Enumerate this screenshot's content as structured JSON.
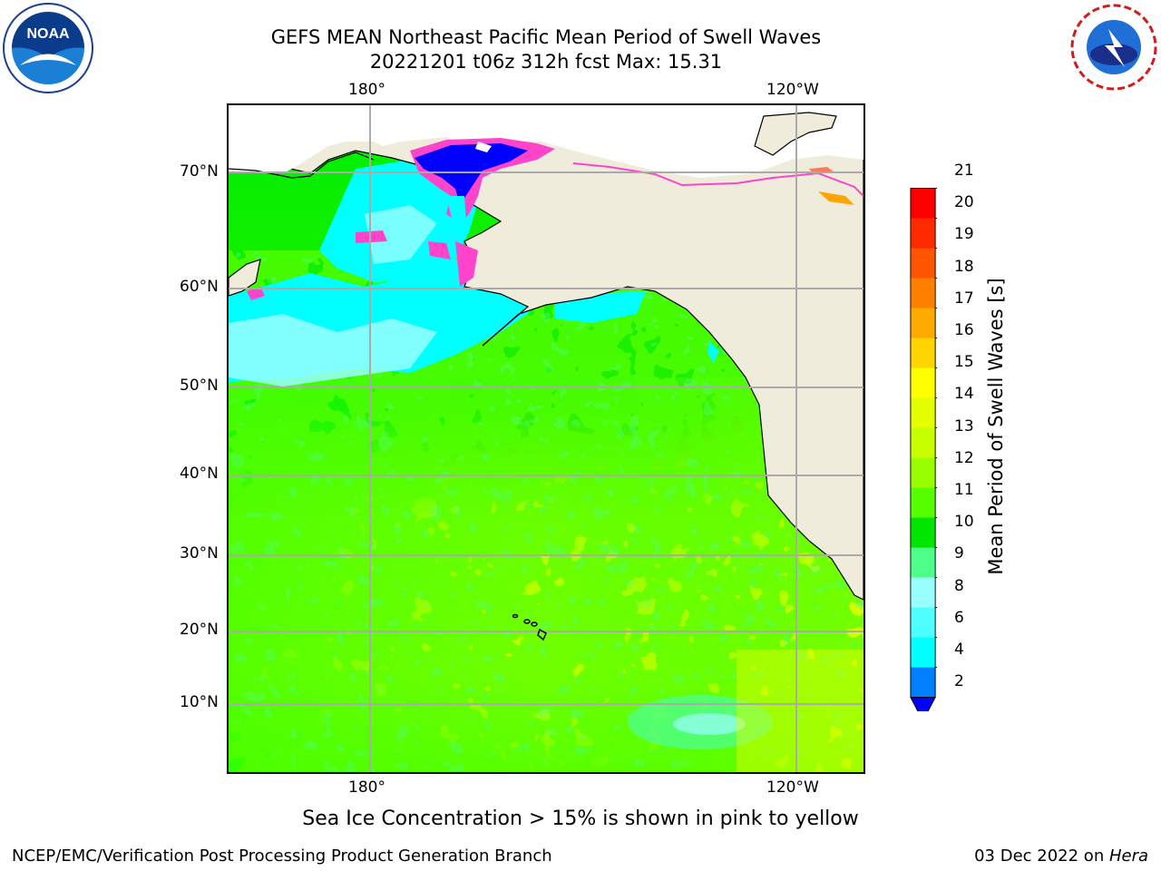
{
  "header": {
    "title_line1": "GEFS MEAN Northeast Pacific Mean Period of Swell Waves",
    "title_line2": "20221201 t06z 312h fcst   Max: 15.31"
  },
  "logos": {
    "left": "NOAA",
    "right": "NATIONAL WEATHER SERVICE"
  },
  "map": {
    "lon_labels_top": [
      "180°",
      "120°W"
    ],
    "lon_labels_bottom": [
      "180°",
      "120°W"
    ],
    "lat_labels": [
      "70°N",
      "60°N",
      "50°N",
      "40°N",
      "30°N",
      "20°N",
      "10°N"
    ],
    "land_color": "#efecdc",
    "ocean_field_colors": [
      "#00ff00",
      "#55ff00",
      "#c8ff00",
      "#e6ff00",
      "#4dff88",
      "#00ffff",
      "#99ffff",
      "#0000ff",
      "#ff44cc"
    ]
  },
  "colorbar": {
    "label": "Mean Period of Swell Waves [s]",
    "ticks": [
      "21",
      "20",
      "19",
      "18",
      "17",
      "16",
      "15",
      "14",
      "13",
      "12",
      "11",
      "10",
      "9",
      "8",
      "6",
      "4",
      "2"
    ],
    "colors": [
      "#ff0000",
      "#ff2a00",
      "#ff5500",
      "#ff8000",
      "#ffaa00",
      "#ffd400",
      "#ffff00",
      "#e6ff00",
      "#c8ff00",
      "#99ff00",
      "#55ff00",
      "#00e600",
      "#4dff88",
      "#99ffff",
      "#4dffff",
      "#00ffff",
      "#0080ff",
      "#0000ff"
    ]
  },
  "caption": "Sea Ice Concentration > 15% is shown in pink to yellow",
  "footer": {
    "left": "NCEP/EMC/Verification Post Processing Product Generation Branch",
    "right_date": "03 Dec 2022 on ",
    "right_host": "Hera"
  }
}
